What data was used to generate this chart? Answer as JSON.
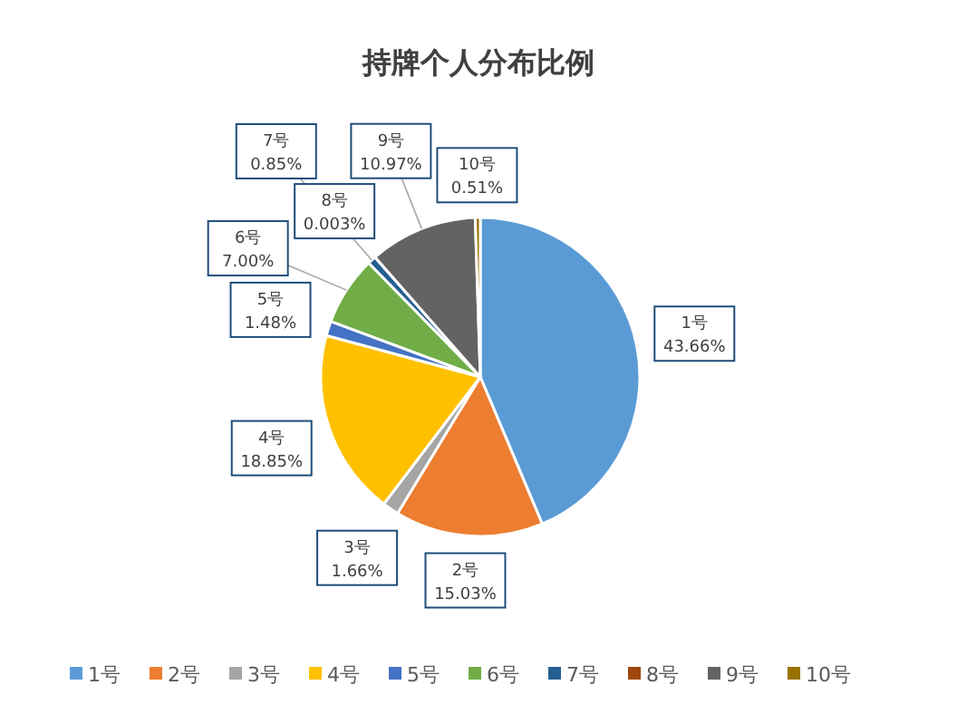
{
  "chart_data": {
    "type": "pie",
    "title": "持牌个人分布比例",
    "categories": [
      "1号",
      "2号",
      "3号",
      "4号",
      "5号",
      "6号",
      "7号",
      "8号",
      "9号",
      "10号"
    ],
    "values": [
      43.66,
      15.03,
      1.66,
      18.85,
      1.48,
      7.0,
      0.85,
      0.003,
      10.97,
      0.51
    ],
    "value_labels": [
      "43.66%",
      "15.03%",
      "1.66%",
      "18.85%",
      "1.48%",
      "7.00%",
      "0.85%",
      "0.003%",
      "10.97%",
      "0.51%"
    ],
    "colors": [
      "#5b9bd5",
      "#ed7d31",
      "#a5a5a5",
      "#ffc000",
      "#4472c4",
      "#70ad47",
      "#255e91",
      "#9e480e",
      "#636363",
      "#997300"
    ],
    "legend": "bottom"
  }
}
